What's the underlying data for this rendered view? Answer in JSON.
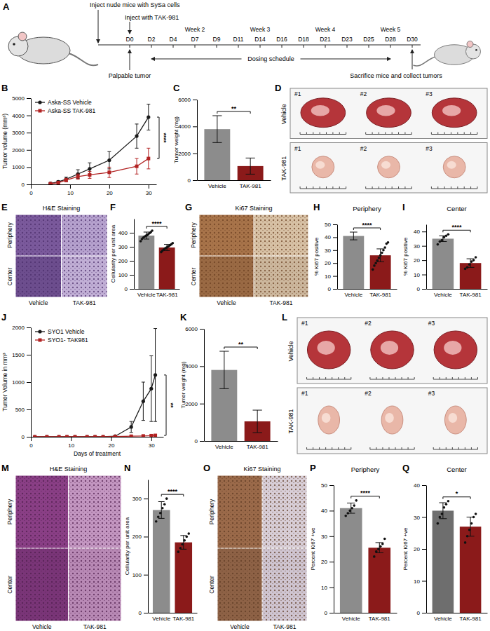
{
  "schematic": {
    "panel": "A",
    "inject_cells": "Inject nude mice with SySa cells",
    "inject_drug": "Inject with TAK-981",
    "days": [
      "D0",
      "D2",
      "D4",
      "D7",
      "D9",
      "D11",
      "D14",
      "D16",
      "D18",
      "D21",
      "D23",
      "D25",
      "D28",
      "D30"
    ],
    "weeks": [
      "Week 2",
      "Week 3",
      "Week 4",
      "Week 5"
    ],
    "start": "Palpable tumor",
    "dosing": "Dosing schedule",
    "end": "Sacrifice mice and collect tumors"
  },
  "chart_data": [
    {
      "panel": "B",
      "type": "line",
      "ylabel": "Tumor volume (mm³)",
      "x": [
        5,
        7,
        9,
        12,
        15,
        20,
        27,
        30
      ],
      "xlim": [
        0,
        32
      ],
      "xticks": [
        0,
        10,
        20,
        30
      ],
      "ylim": [
        0,
        5000
      ],
      "yticks": [
        0,
        1000,
        2000,
        3000,
        4000,
        5000
      ],
      "legend": "upper left",
      "annotations": [
        "****"
      ],
      "series": [
        {
          "name": "Aska-SS Vehicle",
          "color": "#1a1a1a",
          "marker": "circle",
          "values": [
            60,
            150,
            300,
            600,
            900,
            1400,
            2800,
            3900
          ],
          "errors": [
            30,
            60,
            120,
            250,
            350,
            500,
            700,
            750
          ]
        },
        {
          "name": "Aska-SS TAK-981",
          "color": "#b22222",
          "marker": "square",
          "values": [
            40,
            100,
            250,
            450,
            550,
            700,
            1050,
            1500
          ],
          "errors": [
            20,
            50,
            100,
            150,
            200,
            300,
            450,
            600
          ]
        }
      ]
    },
    {
      "panel": "C",
      "type": "bar",
      "categories": [
        "Vehicle",
        "TAK-981"
      ],
      "values": [
        3800,
        1050
      ],
      "errors": [
        1000,
        600
      ],
      "colors": [
        "#8c8c8c",
        "#8b1a1a"
      ],
      "ylabel": "Tumor weight (mg)",
      "ylim": [
        0,
        6000
      ],
      "yticks": [
        0,
        2000,
        4000,
        6000
      ],
      "annotations": [
        "**"
      ]
    },
    {
      "panel": "F",
      "type": "bar",
      "categories": [
        "Vehicle",
        "TAK-981"
      ],
      "values": [
        380,
        295
      ],
      "errors": [
        25,
        22
      ],
      "points": [
        [
          340,
          355,
          365,
          372,
          378,
          383,
          390,
          398,
          405,
          415
        ],
        [
          262,
          272,
          280,
          288,
          294,
          300,
          305,
          312,
          318,
          326
        ]
      ],
      "colors": [
        "#8c8c8c",
        "#8b1a1a"
      ],
      "ylabel": "Cellularity per unit area",
      "ylim": [
        0,
        500
      ],
      "yticks": [
        0,
        100,
        200,
        300,
        400
      ],
      "annotations": [
        "****"
      ]
    },
    {
      "panel": "H",
      "type": "bar",
      "title": "Periphery",
      "categories": [
        "Vehicle",
        "TAK-981"
      ],
      "values": [
        41,
        26
      ],
      "errors": [
        3,
        5
      ],
      "points": [
        [],
        [
          15,
          18,
          20,
          22,
          24,
          26,
          28,
          30,
          32,
          35,
          36
        ]
      ],
      "colors": [
        "#8c8c8c",
        "#8b1a1a"
      ],
      "ylabel": "% Ki67 positive",
      "ylim": [
        0,
        50
      ],
      "yticks": [
        0,
        10,
        20,
        30,
        40,
        50
      ],
      "annotations": [
        "****"
      ]
    },
    {
      "panel": "I",
      "type": "bar",
      "title": "Center",
      "categories": [
        "Vehicle",
        "TAK-981"
      ],
      "values": [
        35,
        18
      ],
      "errors": [
        2,
        3
      ],
      "points": [
        [
          31,
          33,
          34,
          36,
          37,
          38
        ],
        [
          14,
          15,
          17,
          19,
          20,
          22
        ]
      ],
      "colors": [
        "#8c8c8c",
        "#8b1a1a"
      ],
      "ylabel": "% Ki67 positive",
      "ylim": [
        0,
        45
      ],
      "yticks": [
        0,
        10,
        20,
        30,
        40
      ],
      "annotations": [
        "****"
      ]
    },
    {
      "panel": "J",
      "type": "line",
      "ylabel": "Tumor Volume in mm³",
      "xlabel": "Days of treatment",
      "x": [
        1,
        4,
        7,
        9,
        11,
        14,
        16,
        18,
        21,
        25,
        28,
        30,
        31
      ],
      "xlim": [
        0,
        33
      ],
      "xticks": [
        0,
        10,
        20,
        30
      ],
      "ylim": [
        0,
        2000
      ],
      "yticks": [
        0,
        500,
        1000,
        1500,
        2000
      ],
      "legend": "upper left",
      "annotations": [
        "**"
      ],
      "series": [
        {
          "name": "SYO1 Vehicle",
          "color": "#1a1a1a",
          "marker": "circle",
          "values": [
            0,
            0,
            0,
            0,
            0,
            0,
            0,
            0,
            10,
            180,
            650,
            880,
            1130
          ],
          "errors": [
            0,
            0,
            0,
            0,
            0,
            0,
            0,
            0,
            10,
            100,
            350,
            600,
            850
          ]
        },
        {
          "name": "SYO1- TAK981",
          "color": "#b22222",
          "marker": "square",
          "values": [
            0,
            0,
            0,
            0,
            0,
            0,
            0,
            0,
            5,
            10,
            15,
            20,
            25
          ],
          "errors": [
            0,
            0,
            0,
            0,
            0,
            0,
            0,
            0,
            5,
            10,
            15,
            20,
            20
          ]
        }
      ]
    },
    {
      "panel": "K",
      "type": "bar",
      "categories": [
        "Vehicle",
        "TAK-981"
      ],
      "values": [
        3800,
        1050
      ],
      "errors": [
        1000,
        600
      ],
      "colors": [
        "#8c8c8c",
        "#8b1a1a"
      ],
      "ylabel": "Tumor weight (mg)",
      "ylim": [
        0,
        6000
      ],
      "yticks": [
        0,
        2000,
        4000,
        6000
      ],
      "annotations": [
        "**"
      ]
    },
    {
      "panel": "N",
      "type": "bar",
      "categories": [
        "Vehicle",
        "TAK-981"
      ],
      "values": [
        270,
        185
      ],
      "errors": [
        22,
        18
      ],
      "points": [
        [
          240,
          252,
          262,
          275,
          285,
          300
        ],
        [
          160,
          170,
          180,
          190,
          200,
          208
        ]
      ],
      "colors": [
        "#8c8c8c",
        "#8b1a1a"
      ],
      "ylabel": "Cellularity per unit area",
      "ylim": [
        0,
        350
      ],
      "yticks": [
        0,
        100,
        200,
        300
      ],
      "annotations": [
        "****"
      ]
    },
    {
      "panel": "P",
      "type": "bar",
      "title": "Periphery",
      "categories": [
        "Vehicle",
        "TAK-981"
      ],
      "values": [
        41,
        25.5
      ],
      "errors": [
        2,
        2
      ],
      "points": [
        [
          38,
          39,
          40,
          41,
          42,
          44
        ],
        [
          22,
          24,
          25,
          26,
          27,
          29
        ]
      ],
      "colors": [
        "#8c8c8c",
        "#8b1a1a"
      ],
      "ylabel": "Percent Ki67 +ve",
      "ylim": [
        0,
        50
      ],
      "yticks": [
        0,
        10,
        20,
        30,
        40,
        50
      ],
      "annotations": [
        "****"
      ]
    },
    {
      "panel": "Q",
      "type": "bar",
      "title": "Center",
      "categories": [
        "Vehicle",
        "TAK-981"
      ],
      "values": [
        32,
        27
      ],
      "errors": [
        2.5,
        3
      ],
      "points": [
        [
          28,
          30,
          31,
          33,
          34,
          35
        ],
        [
          22,
          24,
          26,
          28,
          30,
          31
        ]
      ],
      "colors": [
        "#6e6e6e",
        "#8b1a1a"
      ],
      "ylabel": "Percent Ki67 +ve",
      "ylim": [
        0,
        40
      ],
      "yticks": [
        0,
        10,
        20,
        30,
        40
      ],
      "annotations": [
        "*"
      ]
    }
  ],
  "images": [
    {
      "panel": "D",
      "rows": [
        "Vehicle",
        "TAK-981"
      ],
      "items": [
        "#1",
        "#2",
        "#3"
      ]
    },
    {
      "panel": "E",
      "title": "H&E Staining",
      "rows": [
        "Periphery",
        "Center"
      ],
      "columns": [
        "Vehicle",
        "TAK-981"
      ]
    },
    {
      "panel": "G",
      "title": "Ki67 Staining",
      "rows": [
        "Periphery",
        "Center"
      ],
      "columns": [
        "Vehicle",
        "TAK-981"
      ]
    },
    {
      "panel": "L",
      "rows": [
        "Vehicle",
        "TAK-981"
      ],
      "items": [
        "#1",
        "#2",
        "#3"
      ]
    },
    {
      "panel": "M",
      "title": "H&E Staining",
      "rows": [
        "Periphery",
        "Center"
      ],
      "columns": [
        "Vehicle",
        "TAK-981"
      ]
    },
    {
      "panel": "O",
      "title": "Ki67 Staining",
      "rows": [
        "Periphery",
        "Center"
      ],
      "columns": [
        "Vehicle",
        "TAK-981"
      ]
    }
  ]
}
